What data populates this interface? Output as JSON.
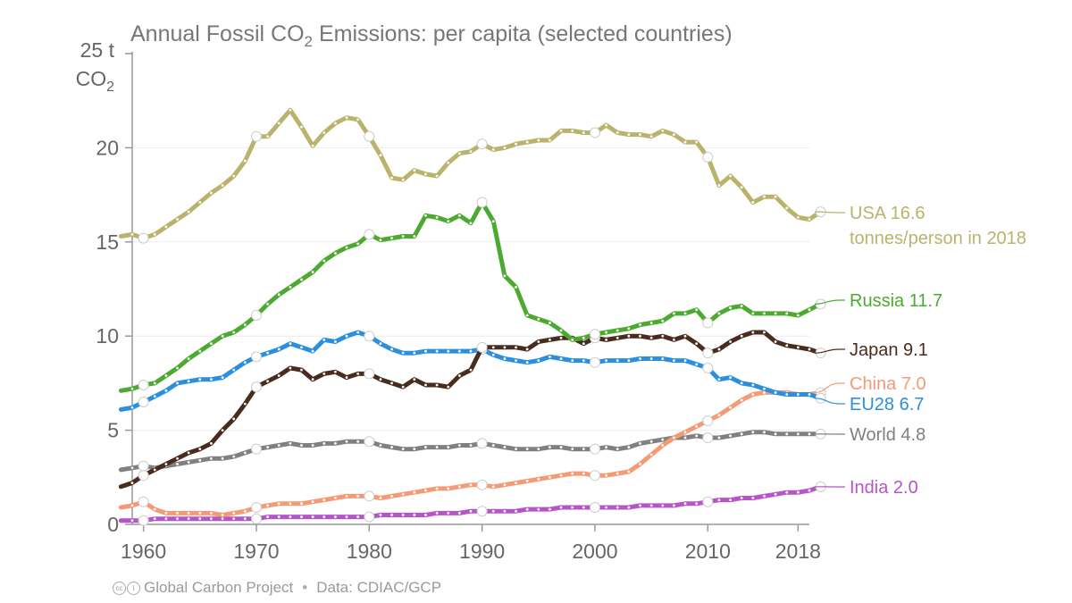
{
  "chart_data": {
    "type": "line",
    "title_parts": {
      "pre": "Annual Fossil CO",
      "sub": "2",
      "post": " Emissions: per capita (selected countries)"
    },
    "ylabel_parts": {
      "top": "25 t",
      "pre": "CO",
      "sub": "2"
    },
    "xlim": [
      1959,
      2019
    ],
    "ylim": [
      0,
      25
    ],
    "yticks": [
      0,
      5,
      10,
      15,
      20
    ],
    "xticks": [
      1960,
      1970,
      1980,
      1990,
      2000,
      2010,
      2018
    ],
    "xtick_labels": [
      "1960",
      "1970",
      "1980",
      "1990",
      "2000",
      "2010",
      "2018"
    ],
    "ytick_labels": [
      "0",
      "5",
      "10",
      "15",
      "20"
    ],
    "grid": "horizontal",
    "series": [
      {
        "name": "USA",
        "label": "USA 16.6",
        "sublabel": "tonnes/person in 2018",
        "color": "#bab36b",
        "values": [
          15.3,
          15.4,
          15.2,
          15.4,
          15.8,
          16.2,
          16.6,
          17.1,
          17.6,
          18.0,
          18.5,
          19.3,
          20.6,
          20.6,
          21.3,
          22.0,
          21.1,
          20.1,
          20.8,
          21.3,
          21.6,
          21.5,
          20.6,
          19.6,
          18.4,
          18.3,
          18.8,
          18.6,
          18.5,
          19.2,
          19.7,
          19.8,
          20.2,
          19.9,
          20.0,
          20.2,
          20.3,
          20.4,
          20.4,
          20.9,
          20.9,
          20.8,
          20.8,
          21.2,
          20.8,
          20.7,
          20.7,
          20.6,
          20.9,
          20.7,
          20.3,
          20.3,
          19.5,
          18.0,
          18.5,
          17.9,
          17.1,
          17.4,
          17.4,
          16.8,
          16.3,
          16.2,
          16.6
        ]
      },
      {
        "name": "Russia",
        "label": "Russia 11.7",
        "color": "#4daa30",
        "values": [
          7.1,
          7.2,
          7.4,
          7.5,
          7.9,
          8.3,
          8.8,
          9.2,
          9.6,
          10.0,
          10.2,
          10.6,
          11.1,
          11.7,
          12.2,
          12.6,
          13.0,
          13.4,
          14.0,
          14.4,
          14.7,
          14.9,
          15.4,
          15.1,
          15.2,
          15.3,
          15.3,
          16.4,
          16.3,
          16.1,
          16.4,
          16.0,
          17.1,
          16.1,
          13.2,
          12.6,
          11.1,
          10.9,
          10.7,
          10.3,
          9.8,
          9.9,
          10.1,
          10.2,
          10.3,
          10.4,
          10.6,
          10.7,
          10.8,
          11.2,
          11.2,
          11.4,
          10.7,
          11.2,
          11.5,
          11.6,
          11.2,
          11.2,
          11.2,
          11.2,
          11.1,
          11.4,
          11.7
        ]
      },
      {
        "name": "Japan",
        "label": "Japan 9.1",
        "color": "#4a2c1e",
        "values": [
          2.0,
          2.2,
          2.6,
          2.9,
          3.2,
          3.5,
          3.8,
          4.0,
          4.3,
          5.0,
          5.6,
          6.4,
          7.3,
          7.6,
          7.9,
          8.3,
          8.2,
          7.7,
          8.0,
          8.1,
          7.8,
          8.0,
          8.0,
          7.7,
          7.5,
          7.3,
          7.7,
          7.4,
          7.4,
          7.3,
          7.9,
          8.2,
          9.4,
          9.4,
          9.4,
          9.4,
          9.3,
          9.7,
          9.8,
          9.9,
          9.9,
          9.6,
          9.9,
          9.8,
          9.9,
          10.0,
          10.0,
          9.9,
          10.0,
          9.8,
          10.0,
          9.6,
          9.1,
          9.3,
          9.7,
          10.0,
          10.2,
          10.2,
          9.7,
          9.5,
          9.4,
          9.3,
          9.1
        ]
      },
      {
        "name": "EU28",
        "label": "EU28 6.7",
        "color": "#2b8fe0",
        "values": [
          6.1,
          6.2,
          6.5,
          6.8,
          7.1,
          7.5,
          7.6,
          7.7,
          7.7,
          7.8,
          8.2,
          8.6,
          8.9,
          9.1,
          9.3,
          9.6,
          9.4,
          9.2,
          9.8,
          9.7,
          10.0,
          10.2,
          10.0,
          9.6,
          9.3,
          9.1,
          9.1,
          9.2,
          9.2,
          9.2,
          9.2,
          9.2,
          9.3,
          9.0,
          8.8,
          8.7,
          8.6,
          8.7,
          8.9,
          8.8,
          8.7,
          8.7,
          8.6,
          8.7,
          8.7,
          8.7,
          8.8,
          8.8,
          8.8,
          8.7,
          8.7,
          8.5,
          8.3,
          7.7,
          7.8,
          7.5,
          7.4,
          7.2,
          7.0,
          6.9,
          6.9,
          6.9,
          6.7
        ]
      },
      {
        "name": "China",
        "label": "China 7.0",
        "color": "#f49a74",
        "values": [
          0.9,
          1.0,
          1.2,
          0.8,
          0.6,
          0.6,
          0.6,
          0.6,
          0.6,
          0.5,
          0.6,
          0.7,
          0.9,
          1.0,
          1.1,
          1.1,
          1.1,
          1.2,
          1.3,
          1.4,
          1.5,
          1.5,
          1.5,
          1.4,
          1.5,
          1.6,
          1.7,
          1.8,
          1.9,
          1.9,
          2.0,
          2.1,
          2.1,
          2.0,
          2.1,
          2.2,
          2.3,
          2.4,
          2.5,
          2.6,
          2.7,
          2.7,
          2.6,
          2.6,
          2.7,
          2.8,
          3.2,
          3.7,
          4.2,
          4.6,
          4.9,
          5.2,
          5.5,
          5.8,
          6.2,
          6.6,
          6.9,
          7.0,
          7.0,
          7.0,
          6.9,
          6.9,
          7.0
        ]
      },
      {
        "name": "World",
        "label": "World 4.8",
        "color": "#808080",
        "values": [
          2.9,
          3.0,
          3.1,
          3.0,
          3.1,
          3.2,
          3.3,
          3.4,
          3.5,
          3.5,
          3.6,
          3.8,
          4.0,
          4.1,
          4.2,
          4.3,
          4.2,
          4.2,
          4.3,
          4.3,
          4.4,
          4.4,
          4.4,
          4.2,
          4.1,
          4.0,
          4.0,
          4.1,
          4.1,
          4.1,
          4.2,
          4.2,
          4.3,
          4.2,
          4.1,
          4.0,
          4.0,
          4.0,
          4.1,
          4.1,
          4.0,
          4.0,
          4.0,
          4.1,
          4.0,
          4.1,
          4.3,
          4.4,
          4.5,
          4.6,
          4.6,
          4.7,
          4.6,
          4.6,
          4.7,
          4.8,
          4.9,
          4.9,
          4.8,
          4.8,
          4.8,
          4.8,
          4.8
        ]
      },
      {
        "name": "India",
        "label": "India 2.0",
        "color": "#b655c8",
        "values": [
          0.2,
          0.2,
          0.2,
          0.3,
          0.3,
          0.3,
          0.3,
          0.3,
          0.3,
          0.3,
          0.3,
          0.3,
          0.3,
          0.4,
          0.4,
          0.4,
          0.4,
          0.4,
          0.4,
          0.4,
          0.4,
          0.4,
          0.4,
          0.5,
          0.5,
          0.5,
          0.5,
          0.5,
          0.6,
          0.6,
          0.6,
          0.7,
          0.7,
          0.7,
          0.7,
          0.7,
          0.8,
          0.8,
          0.8,
          0.9,
          0.9,
          0.9,
          0.9,
          0.9,
          0.9,
          0.9,
          1.0,
          1.0,
          1.0,
          1.0,
          1.1,
          1.1,
          1.2,
          1.3,
          1.3,
          1.4,
          1.4,
          1.5,
          1.6,
          1.7,
          1.7,
          1.8,
          2.0
        ]
      }
    ]
  },
  "footer": {
    "source": "Global Carbon Project",
    "separator": "•",
    "data_credit": "Data: CDIAC/GCP"
  }
}
